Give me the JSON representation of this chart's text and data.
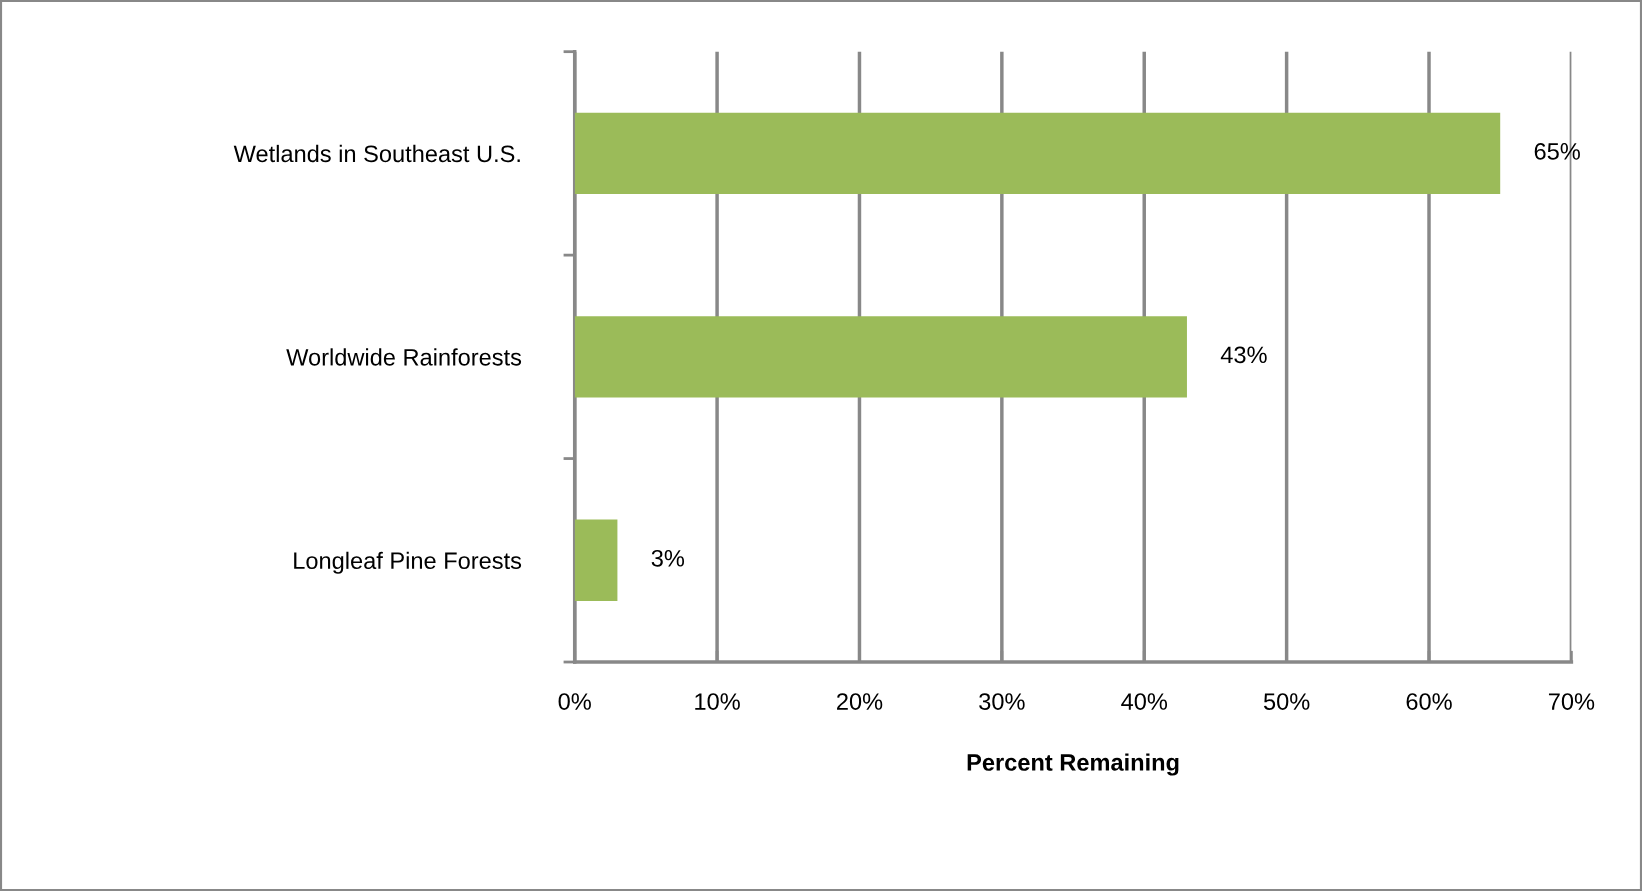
{
  "chart_data": {
    "type": "bar",
    "orientation": "horizontal",
    "xlabel": "Percent Remaining",
    "categories": [
      "Wetlands in Southeast U.S.",
      "Worldwide Rainforests",
      "Longleaf Pine Forests"
    ],
    "values": [
      65,
      43,
      3
    ],
    "color": "#9bbb59",
    "value_labels": [
      "65%",
      "43%",
      "3%"
    ],
    "xlim": [
      0,
      70
    ],
    "xticks": [
      {
        "value": 0,
        "label": "0%"
      },
      {
        "value": 10,
        "label": "10%"
      },
      {
        "value": 20,
        "label": "20%"
      },
      {
        "value": 30,
        "label": "30%"
      },
      {
        "value": 40,
        "label": "40%"
      },
      {
        "value": 50,
        "label": "50%"
      },
      {
        "value": 60,
        "label": "60%"
      },
      {
        "value": 70,
        "label": "70%"
      }
    ],
    "grid": "x"
  }
}
